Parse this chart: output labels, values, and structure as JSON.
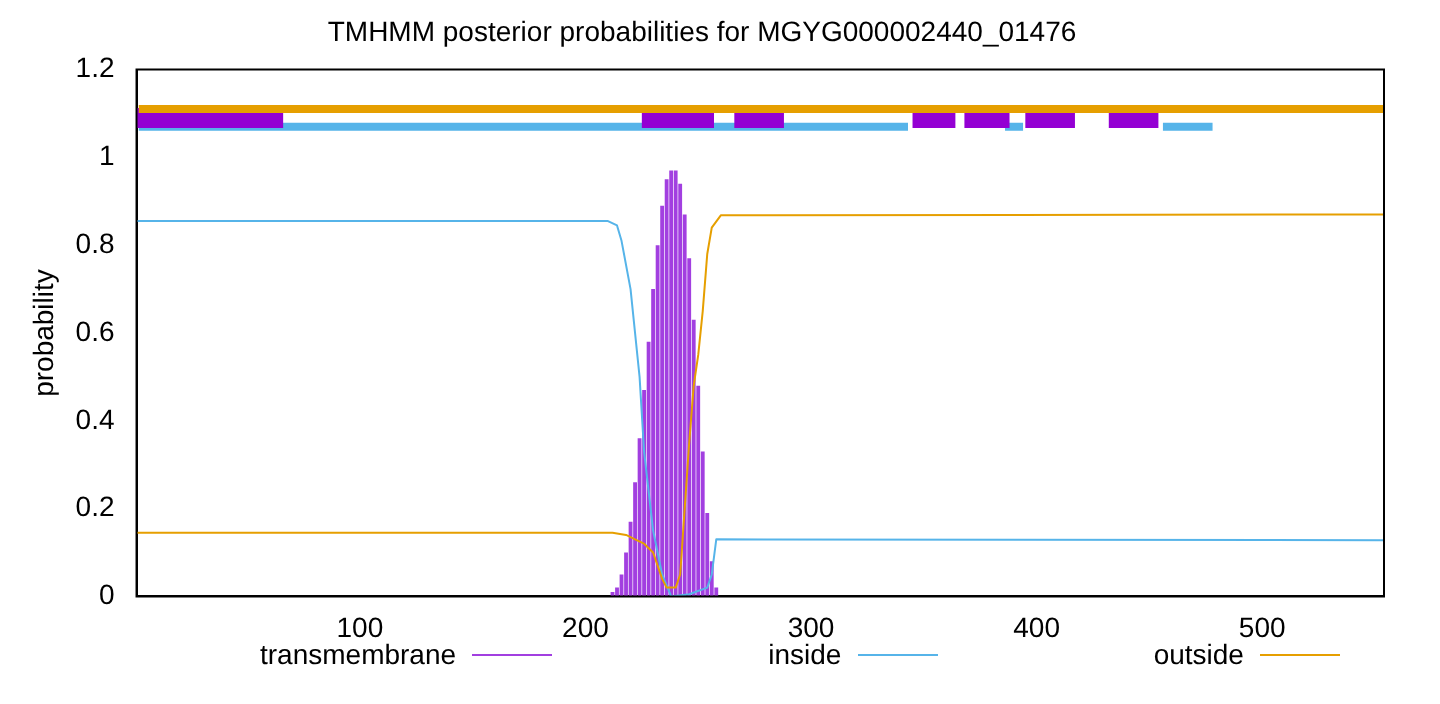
{
  "chart_data": {
    "type": "line",
    "title": "TMHMM posterior probabilities for MGYG000002440_01476",
    "ylabel": "probability",
    "xlim": [
      1,
      554
    ],
    "xticks": [
      100,
      200,
      300,
      400,
      500
    ],
    "ylim": [
      0,
      1.2
    ],
    "yticks": [
      0,
      0.2,
      0.4,
      0.6,
      0.8,
      1,
      1.2
    ],
    "grid": false,
    "legend": "bottom",
    "marker": "none",
    "series": [
      {
        "name": "transmembrane",
        "type": "bar",
        "color": "#a23fe0",
        "x": [
          212,
          214,
          216,
          218,
          220,
          222,
          224,
          226,
          228,
          230,
          232,
          234,
          236,
          238,
          240,
          242,
          244,
          246,
          248,
          250,
          252,
          254,
          256,
          258
        ],
        "values": [
          0.01,
          0.02,
          0.05,
          0.1,
          0.17,
          0.26,
          0.36,
          0.47,
          0.58,
          0.7,
          0.8,
          0.89,
          0.95,
          0.97,
          0.97,
          0.94,
          0.87,
          0.77,
          0.63,
          0.48,
          0.33,
          0.19,
          0.08,
          0.02
        ]
      },
      {
        "name": "inside",
        "color": "#56b4e9",
        "x": [
          1,
          210,
          214,
          216,
          220,
          224,
          226,
          230,
          234,
          238,
          246,
          254,
          256,
          258,
          554
        ],
        "values": [
          0.855,
          0.855,
          0.845,
          0.81,
          0.7,
          0.5,
          0.33,
          0.15,
          0.05,
          0.0,
          0.005,
          0.02,
          0.05,
          0.13,
          0.128
        ]
      },
      {
        "name": "outside",
        "color": "#e69f00",
        "x": [
          1,
          212,
          218,
          222,
          226,
          230,
          234,
          236,
          240,
          242,
          244,
          246,
          248,
          250,
          252,
          254,
          256,
          260,
          554
        ],
        "values": [
          0.145,
          0.145,
          0.14,
          0.13,
          0.12,
          0.1,
          0.04,
          0.02,
          0.02,
          0.05,
          0.2,
          0.35,
          0.48,
          0.55,
          0.65,
          0.78,
          0.84,
          0.868,
          0.87
        ]
      },
      {
        "color": "#56b4e9",
        "x": [
          2,
          343,
          344,
          386,
          394,
          395,
          456,
          478
        ],
        "values": [
          1.07,
          1.07,
          null,
          1.07,
          1.07,
          null,
          1.07,
          1.07
        ]
      },
      {
        "color": "#9400d3",
        "x": [
          1,
          66,
          67,
          225,
          257,
          258,
          266,
          288,
          289,
          345,
          364,
          365,
          368,
          388,
          389,
          395,
          417,
          418,
          432,
          454
        ],
        "values": [
          1.09,
          1.09,
          null,
          1.09,
          1.09,
          null,
          1.09,
          1.09,
          null,
          1.09,
          1.09,
          null,
          1.09,
          1.09,
          null,
          1.09,
          1.09,
          null,
          1.09,
          1.09
        ]
      },
      {
        "color": "#e69f00",
        "x": [
          2,
          554
        ],
        "values": [
          1.11,
          1.11
        ]
      }
    ]
  }
}
